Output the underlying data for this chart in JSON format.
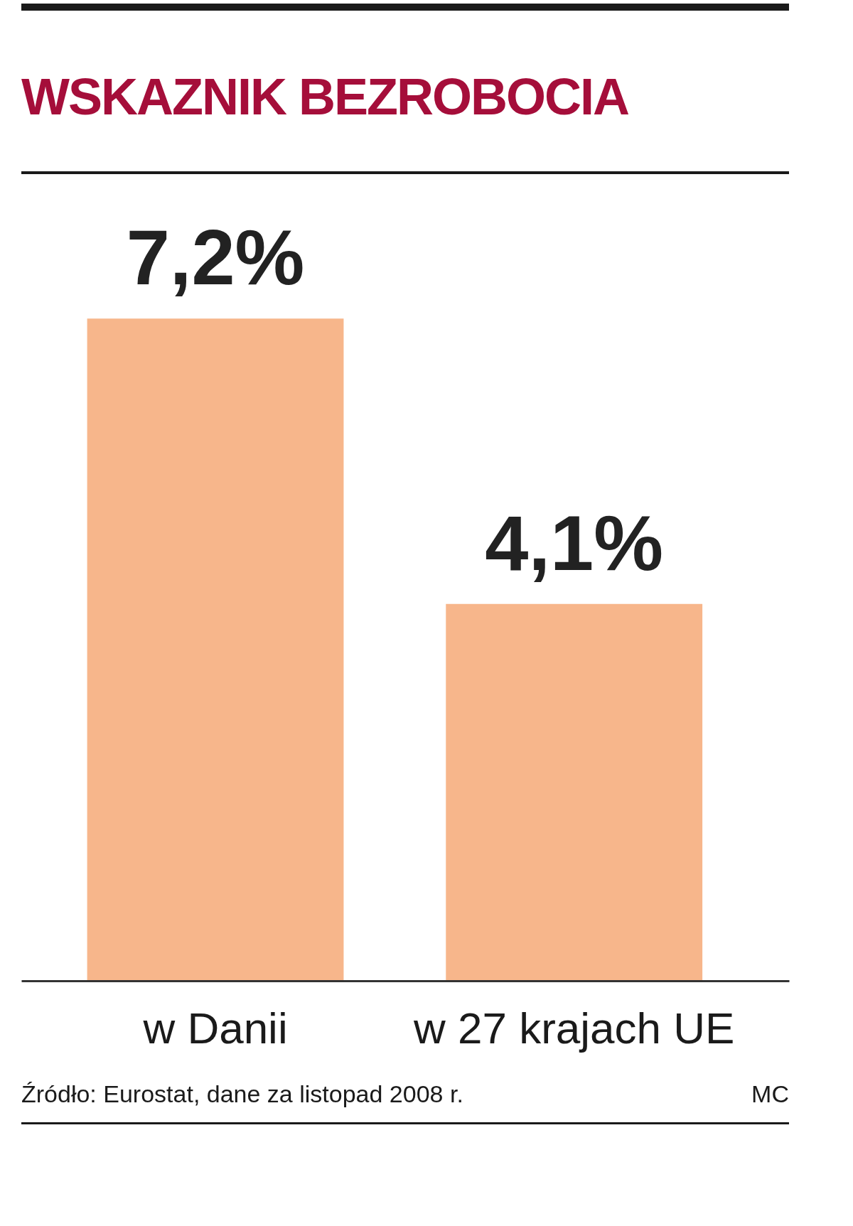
{
  "chart_data": {
    "type": "bar",
    "title": "WSKAZNIK BEZROBOCIA",
    "categories": [
      "w Danii",
      "w 27 krajach UE"
    ],
    "values": [
      7.2,
      4.1
    ],
    "value_labels": [
      "7,2%",
      "4,1%"
    ],
    "color": "#f7b68b",
    "annotations": [
      "Źródło: Eurostat, dane za listopad 2008 r.",
      "MC"
    ]
  }
}
